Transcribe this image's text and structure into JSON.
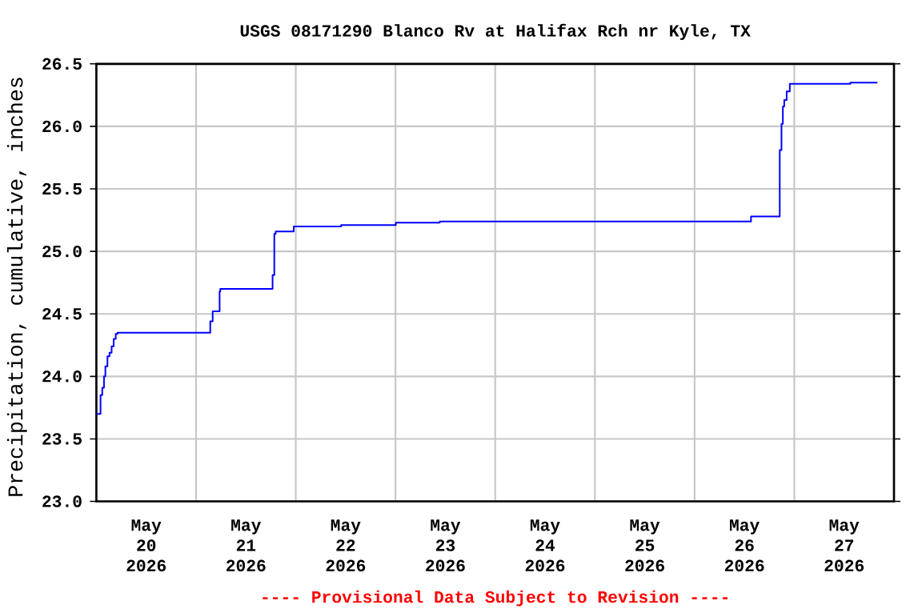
{
  "chart_data": {
    "type": "step",
    "title": "USGS 08171290 Blanco Rv at Halifax Rch nr Kyle, TX",
    "ylabel": "Precipitation, cumulative, inches",
    "x": [
      "2026-05-20T00:00",
      "2026-05-20T01:00",
      "2026-05-20T01:25",
      "2026-05-20T01:50",
      "2026-05-20T02:10",
      "2026-05-20T02:40",
      "2026-05-20T03:10",
      "2026-05-20T03:40",
      "2026-05-20T04:10",
      "2026-05-20T04:40",
      "2026-05-20T05:05",
      "2026-05-21T03:25",
      "2026-05-21T04:00",
      "2026-05-21T05:40",
      "2026-05-21T05:50",
      "2026-05-21T18:25",
      "2026-05-21T18:50",
      "2026-05-21T19:10",
      "2026-05-21T23:30",
      "2026-05-22T10:55",
      "2026-05-23T00:05",
      "2026-05-23T10:40",
      "2026-05-26T13:35",
      "2026-05-26T20:30",
      "2026-05-26T20:55",
      "2026-05-26T21:15",
      "2026-05-26T21:35",
      "2026-05-26T22:10",
      "2026-05-26T22:55",
      "2026-05-27T13:30",
      "2026-05-27T20:00"
    ],
    "series": [
      {
        "color": "#0000ff",
        "values": [
          23.7,
          23.85,
          23.91,
          24.0,
          24.08,
          24.16,
          24.19,
          24.24,
          24.3,
          24.34,
          24.35,
          24.44,
          24.52,
          24.68,
          24.7,
          24.81,
          25.14,
          25.16,
          25.2,
          25.21,
          25.23,
          25.24,
          25.28,
          25.81,
          26.02,
          26.16,
          26.21,
          26.28,
          26.34,
          26.35,
          26.35
        ]
      }
    ],
    "xlim": [
      "2026-05-20T00:00",
      "2026-05-28T00:00"
    ],
    "ylim": [
      23.0,
      26.5
    ],
    "yticks": [
      {
        "value": 23.0,
        "label": "23.0"
      },
      {
        "value": 23.5,
        "label": "23.5"
      },
      {
        "value": 24.0,
        "label": "24.0"
      },
      {
        "value": 24.5,
        "label": "24.5"
      },
      {
        "value": 25.0,
        "label": "25.0"
      },
      {
        "value": 25.5,
        "label": "25.5"
      },
      {
        "value": 26.0,
        "label": "26.0"
      },
      {
        "value": 26.5,
        "label": "26.5"
      }
    ],
    "xticks": [
      {
        "value": "2026-05-20T12:00",
        "label": "May 20 2026"
      },
      {
        "value": "2026-05-21T12:00",
        "label": "May 21 2026"
      },
      {
        "value": "2026-05-22T12:00",
        "label": "May 22 2026"
      },
      {
        "value": "2026-05-23T12:00",
        "label": "May 23 2026"
      },
      {
        "value": "2026-05-24T12:00",
        "label": "May 24 2026"
      },
      {
        "value": "2026-05-25T12:00",
        "label": "May 25 2026"
      },
      {
        "value": "2026-05-26T12:00",
        "label": "May 26 2026"
      },
      {
        "value": "2026-05-27T12:00",
        "label": "May 27 2026"
      },
      {
        "value": "2026-05-21T00:00",
        "label": null
      },
      {
        "value": "2026-05-22T00:00",
        "label": null
      },
      {
        "value": "2026-05-23T00:00",
        "label": null
      },
      {
        "value": "2026-05-24T00:00",
        "label": null
      },
      {
        "value": "2026-05-25T00:00",
        "label": null
      },
      {
        "value": "2026-05-26T00:00",
        "label": null
      },
      {
        "value": "2026-05-27T00:00",
        "label": null
      }
    ],
    "grid": true,
    "annotations": [
      "---- Provisional Data Subject to Revision ----"
    ]
  }
}
